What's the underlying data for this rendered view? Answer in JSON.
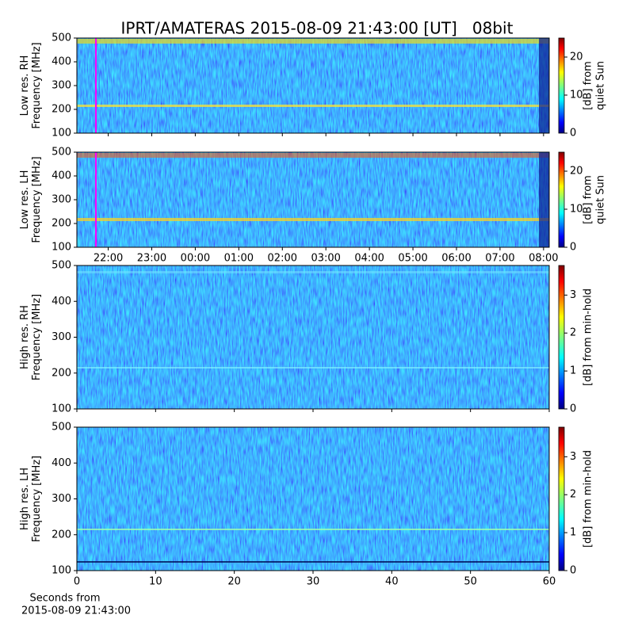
{
  "title": "IPRT/AMATERAS 2015-08-09 21:43:00 [UT]   08bit",
  "chart_data": [
    {
      "type": "heatmap",
      "ylabel": [
        "Low res. RH",
        "Frequency [MHz]"
      ],
      "xlim": [
        21.28,
        32.13
      ],
      "xticks": [
        22,
        23,
        24,
        25,
        26,
        27,
        28,
        29,
        30,
        31,
        32
      ],
      "show_xticklabels": false,
      "ylim": [
        100,
        500
      ],
      "yticks": [
        100,
        200,
        300,
        400,
        500
      ],
      "colormap": "jet",
      "clim": [
        0,
        25
      ],
      "cticks": [
        0,
        10,
        20
      ],
      "colorbar_label": [
        "[dB] from",
        "quiet Sun"
      ],
      "marker_x": 21.717,
      "marker_color": "#ff00ff"
    },
    {
      "type": "heatmap",
      "ylabel": [
        "Low res. LH",
        "Frequency [MHz]"
      ],
      "xlim": [
        21.28,
        32.13
      ],
      "xticks": [
        {
          "value": 22,
          "label": "22:00"
        },
        {
          "value": 23,
          "label": "23:00"
        },
        {
          "value": 24,
          "label": "00:00"
        },
        {
          "value": 25,
          "label": "01:00"
        },
        {
          "value": 26,
          "label": "02:00"
        },
        {
          "value": 27,
          "label": "03:00"
        },
        {
          "value": 28,
          "label": "04:00"
        },
        {
          "value": 29,
          "label": "05:00"
        },
        {
          "value": 30,
          "label": "06:00"
        },
        {
          "value": 31,
          "label": "07:00"
        },
        {
          "value": 32,
          "label": "08:00"
        }
      ],
      "show_xticklabels": true,
      "ylim": [
        100,
        500
      ],
      "yticks": [
        100,
        200,
        300,
        400,
        500
      ],
      "colormap": "jet",
      "clim": [
        0,
        25
      ],
      "cticks": [
        0,
        10,
        20
      ],
      "colorbar_label": [
        "[dB] from",
        "quiet Sun"
      ],
      "marker_x": 21.717,
      "marker_color": "#ff00ff"
    },
    {
      "type": "heatmap",
      "ylabel": [
        "High res. RH",
        "Frequency [MHz]"
      ],
      "xlim": [
        0,
        60
      ],
      "xticks": [
        0,
        10,
        20,
        30,
        40,
        50,
        60
      ],
      "show_xticklabels": false,
      "ylim": [
        100,
        500
      ],
      "yticks": [
        100,
        200,
        300,
        400,
        500
      ],
      "colormap": "jet",
      "clim": [
        0,
        3.78
      ],
      "cticks": [
        0,
        1,
        2,
        3
      ],
      "colorbar_label": [
        "[dB] from min-hold"
      ]
    },
    {
      "type": "heatmap",
      "ylabel": [
        "High res. LH",
        "Frequency [MHz]"
      ],
      "xlim": [
        0,
        60
      ],
      "xticks": [
        0,
        10,
        20,
        30,
        40,
        50,
        60
      ],
      "show_xticklabels": true,
      "xlabel": [
        "Seconds from",
        "2015-08-09 21:43:00"
      ],
      "ylim": [
        100,
        500
      ],
      "yticks": [
        100,
        200,
        300,
        400,
        500
      ],
      "colormap": "jet",
      "clim": [
        0,
        3.78
      ],
      "cticks": [
        0,
        1,
        2,
        3
      ],
      "colorbar_label": [
        "[dB] from min-hold"
      ]
    }
  ]
}
